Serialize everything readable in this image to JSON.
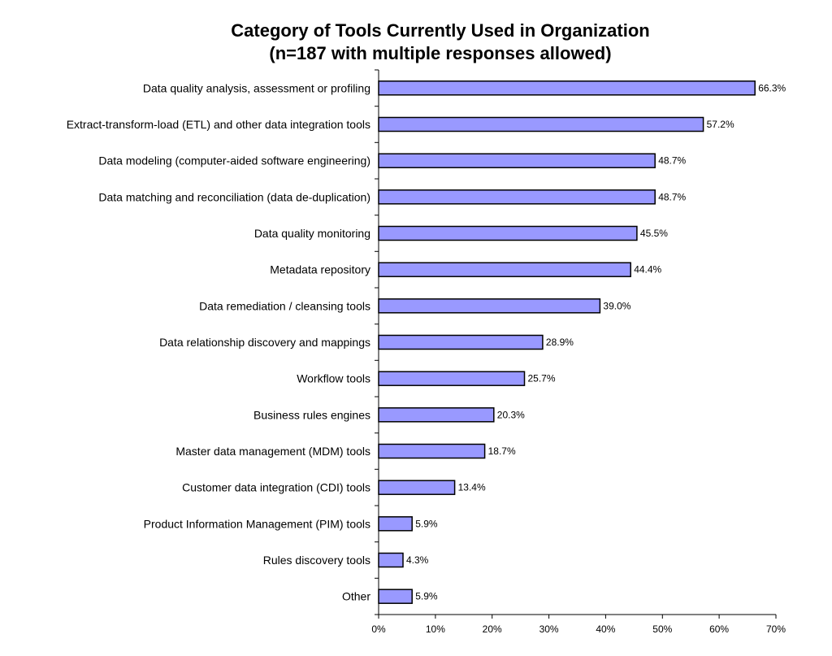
{
  "chart_data": {
    "type": "bar",
    "orientation": "horizontal",
    "title": "Category of Tools Currently Used in Organization",
    "subtitle": "(n=187 with multiple responses allowed)",
    "xlabel": "",
    "ylabel": "",
    "xlim": [
      0,
      70
    ],
    "xticks": [
      "0%",
      "10%",
      "20%",
      "30%",
      "40%",
      "50%",
      "60%",
      "70%"
    ],
    "grid": false,
    "legend": "none",
    "bar_color": "#9999ff",
    "bar_edge_color": "#000000",
    "categories": [
      "Data quality analysis, assessment or profiling",
      "Extract-transform-load (ETL) and other data integration tools",
      "Data modeling (computer-aided software engineering)",
      "Data matching and reconciliation (data de-duplication)",
      "Data quality monitoring",
      "Metadata repository",
      "Data remediation / cleansing tools",
      "Data relationship discovery and mappings",
      "Workflow tools",
      "Business rules engines",
      "Master data management (MDM) tools",
      "Customer data integration (CDI) tools",
      "Product Information Management (PIM) tools",
      "Rules discovery tools",
      "Other"
    ],
    "values": [
      66.3,
      57.2,
      48.7,
      48.7,
      45.5,
      44.4,
      39.0,
      28.9,
      25.7,
      20.3,
      18.7,
      13.4,
      5.9,
      4.3,
      5.9
    ],
    "value_labels": [
      "66.3%",
      "57.2%",
      "48.7%",
      "48.7%",
      "45.5%",
      "44.4%",
      "39.0%",
      "28.9%",
      "25.7%",
      "20.3%",
      "18.7%",
      "13.4%",
      "5.9%",
      "4.3%",
      "5.9%"
    ]
  }
}
